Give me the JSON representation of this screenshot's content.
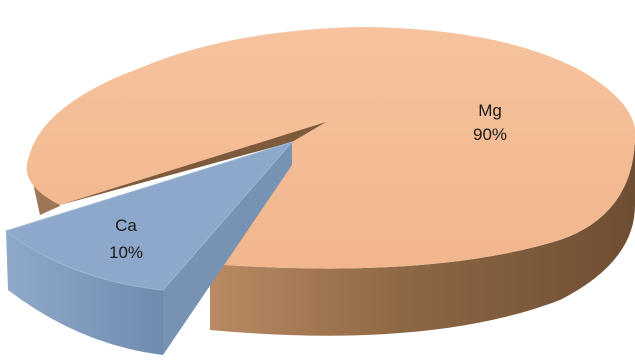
{
  "chart_data": {
    "type": "pie",
    "title": "",
    "three_d": true,
    "exploded": [
      "Ca"
    ],
    "slices": [
      {
        "label": "Mg",
        "value": 90,
        "value_label": "90%",
        "color": "#F4BC94",
        "side_color": "#8A6240"
      },
      {
        "label": "Ca",
        "value": 10,
        "value_label": "10%",
        "color": "#8AA6C8",
        "side_color": "#7B97B9"
      }
    ]
  }
}
